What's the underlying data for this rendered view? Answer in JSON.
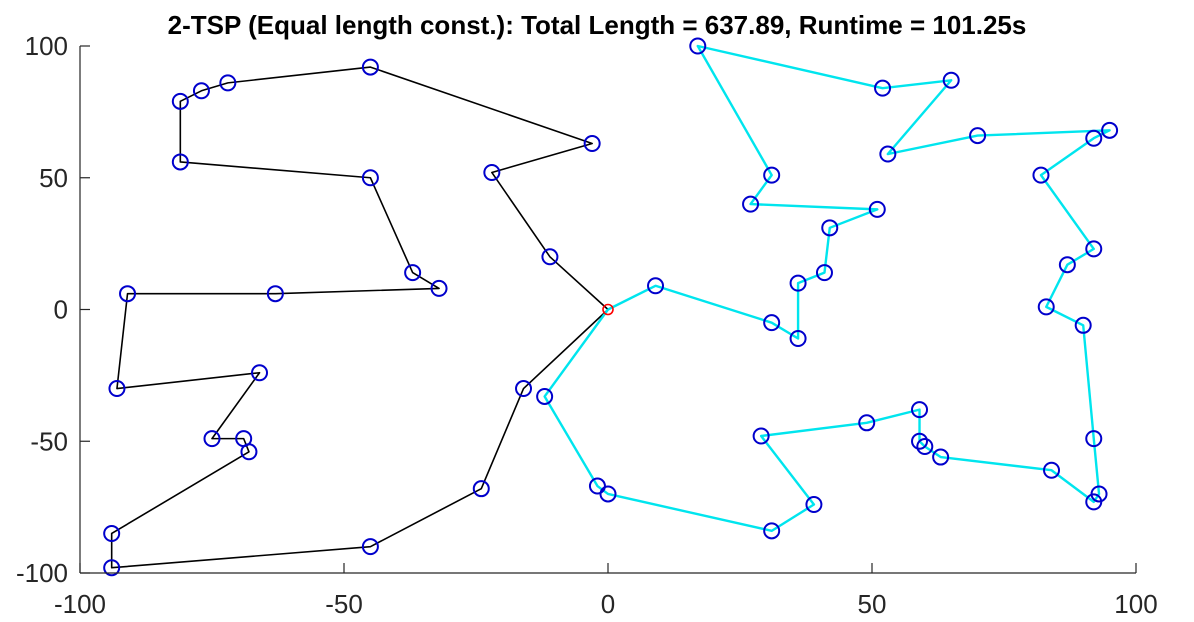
{
  "chart_data": {
    "type": "scatter",
    "title": "2-TSP (Equal length const.): Total Length = 637.89, Runtime = 101.25s",
    "xlabel": "",
    "ylabel": "",
    "xlim": [
      -100,
      100
    ],
    "ylim": [
      -100,
      100
    ],
    "x_ticks": [
      -100,
      -50,
      0,
      50,
      100
    ],
    "y_ticks": [
      100,
      50,
      0,
      -50,
      -100
    ],
    "grid": false,
    "depot": {
      "x": 0,
      "y": 0,
      "color": "#ff0000"
    },
    "point_color": "#0000cc",
    "series": [
      {
        "color": "#000000",
        "points": [
          [
            0,
            0
          ],
          [
            -11,
            20
          ],
          [
            -22,
            52
          ],
          [
            -3,
            63
          ],
          [
            -45,
            92
          ],
          [
            -72,
            86
          ],
          [
            -77,
            83
          ],
          [
            -81,
            79
          ],
          [
            -81,
            56
          ],
          [
            -45,
            50
          ],
          [
            -37,
            14
          ],
          [
            -32,
            8
          ],
          [
            -63,
            6
          ],
          [
            -91,
            6
          ],
          [
            -93,
            -30
          ],
          [
            -66,
            -24
          ],
          [
            -75,
            -49
          ],
          [
            -69,
            -49
          ],
          [
            -68,
            -54
          ],
          [
            -94,
            -85
          ],
          [
            -94,
            -98
          ],
          [
            -45,
            -90
          ],
          [
            -24,
            -68
          ],
          [
            -16,
            -30
          ],
          [
            0,
            0
          ]
        ]
      },
      {
        "color": "#00e5ee",
        "points": [
          [
            0,
            0
          ],
          [
            9,
            9
          ],
          [
            31,
            -5
          ],
          [
            36,
            -11
          ],
          [
            36,
            10
          ],
          [
            41,
            14
          ],
          [
            42,
            31
          ],
          [
            51,
            38
          ],
          [
            27,
            40
          ],
          [
            31,
            51
          ],
          [
            17,
            100
          ],
          [
            52,
            84
          ],
          [
            65,
            87
          ],
          [
            53,
            59
          ],
          [
            70,
            66
          ],
          [
            95,
            68
          ],
          [
            92,
            65
          ],
          [
            82,
            51
          ],
          [
            92,
            23
          ],
          [
            87,
            17
          ],
          [
            83,
            1
          ],
          [
            90,
            -6
          ],
          [
            92,
            -49
          ],
          [
            93,
            -70
          ],
          [
            92,
            -73
          ],
          [
            84,
            -61
          ],
          [
            63,
            -56
          ],
          [
            60,
            -52
          ],
          [
            59,
            -50
          ],
          [
            59,
            -38
          ],
          [
            49,
            -43
          ],
          [
            29,
            -48
          ],
          [
            39,
            -74
          ],
          [
            31,
            -84
          ],
          [
            0,
            -70
          ],
          [
            -2,
            -67
          ],
          [
            -12,
            -33
          ],
          [
            0,
            0
          ]
        ]
      }
    ]
  }
}
